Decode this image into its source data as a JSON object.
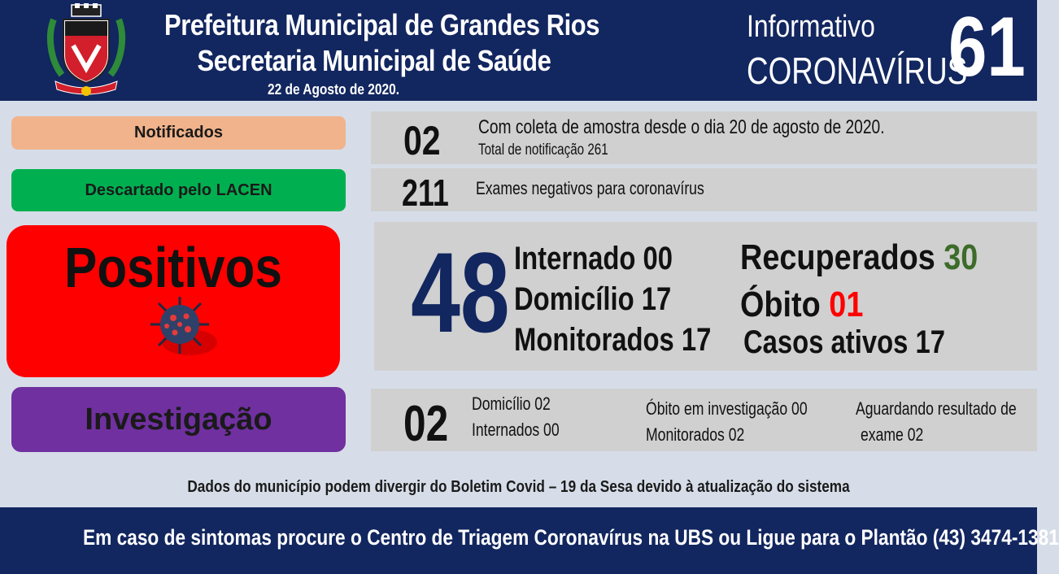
{
  "header": {
    "line1": "Prefeitura Municipal de Grandes Rios",
    "line2": "Secretaria Municipal de Saúde",
    "date": "22 de Agosto de 2020.",
    "info_line1": "Informativo",
    "info_line2": "CORONAVÍRUS",
    "info_number": "61",
    "crest_icon": "municipal-coat-of-arms"
  },
  "labels": {
    "notificados": "Notificados",
    "descartado": "Descartado  pelo LACEN",
    "positivos": "Positivos",
    "investigacao": "Investigação"
  },
  "notificados": {
    "value": "02",
    "line1": "Com coleta de amostra desde o dia 20 de agosto de 2020.",
    "line2": "Total de notificação  261"
  },
  "descartado": {
    "value": "211",
    "line1": "Exames negativos  para coronavírus"
  },
  "positivos": {
    "value": "48",
    "internado": "Internado 00",
    "domicilio": "Domicílio 17",
    "monitorados": "Monitorados 17",
    "recuperados_label": "Recuperados",
    "recuperados_value": "30",
    "obito_label": "Óbito",
    "obito_value": "01",
    "casos_ativos": "Casos ativos 17"
  },
  "investigacao": {
    "value": "02",
    "domicilio": "Domicílio 02",
    "internados": "Internados 00",
    "obito": "Óbito  em investigação  00",
    "monitorados": "Monitorados 02",
    "aguardando1": "Aguardando resultado de",
    "aguardando2": "exame 02"
  },
  "disclaimer": "Dados do município  podem  divergir  do Boletim  Covid – 19 da Sesa devido à atualização  do sistema",
  "footer": "Em caso de sintomas  procure  o Centro de Triagem  Coronavírus  na UBS ou Ligue  para o Plantão  (43) 3474-1381",
  "colors": {
    "navy": "#12265f",
    "notificados": "#f1b38b",
    "descartado": "#00b050",
    "positivos": "#ff0000",
    "investigacao": "#7030a0",
    "recuperados": "#3d6b2a",
    "obito": "#ff0000"
  }
}
